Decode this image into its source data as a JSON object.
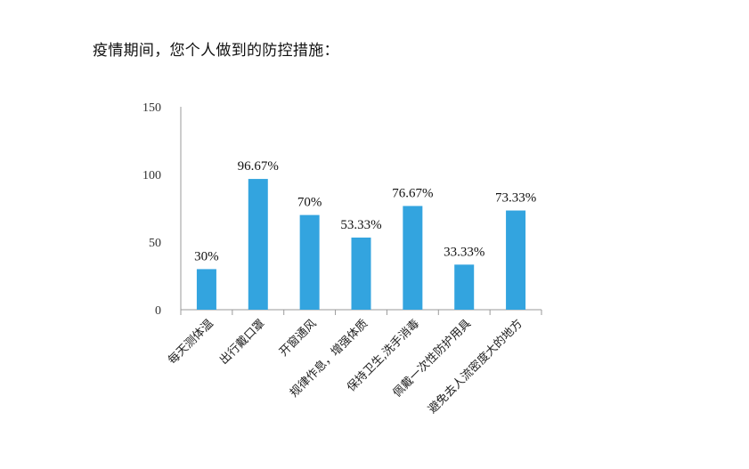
{
  "page": {
    "title": "疫情期间，您个人做到的防控措施："
  },
  "chart_data": {
    "type": "bar",
    "title": "",
    "xlabel": "",
    "ylabel": "",
    "ylim": [
      0,
      150
    ],
    "yticks": [
      0,
      50,
      100,
      150
    ],
    "grid": false,
    "legend": "none",
    "bar_color": "#33A4DF",
    "axis_color": "#9A9A9A",
    "categories": [
      "每天测体温",
      "出行戴口罩",
      "开窗通风",
      "规律作息，增强体质",
      "保持卫生,洗手消毒",
      "佩戴一次性防护用具",
      "避免去人流密度大的地方"
    ],
    "values": [
      30,
      96.67,
      70,
      53.33,
      76.67,
      33.33,
      73.33
    ],
    "data_labels": [
      "30%",
      "96.67%",
      "70%",
      "53.33%",
      "76.67%",
      "33.33%",
      "73.33%"
    ]
  }
}
